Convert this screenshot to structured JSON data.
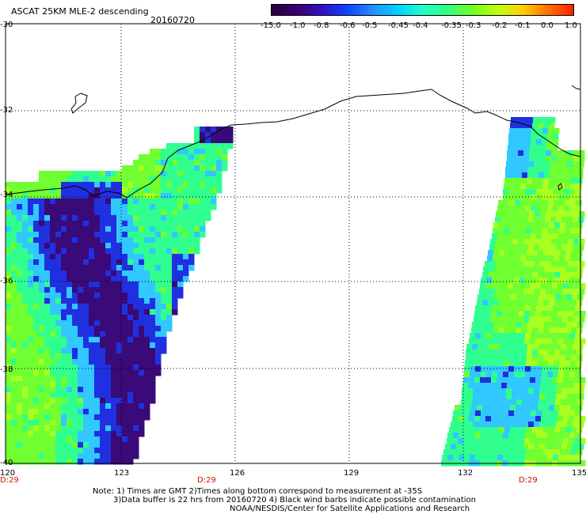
{
  "header": {
    "title": "ASCAT 25KM MLE-2 descending",
    "date": "20160720"
  },
  "colorbar": {
    "labels": [
      "-15.0",
      "-1.0",
      "-0.8",
      "-0.6",
      "-0.5",
      "-0.45",
      "-0.4",
      "-0.35",
      "-0.3",
      "-0.2",
      "-0.1",
      "0.0",
      "1.0"
    ],
    "colors": [
      "#2a003a",
      "#3a0070",
      "#3010c0",
      "#1040ff",
      "#2090ff",
      "#00d0ff",
      "#20ffc8",
      "#30ff80",
      "#70ff20",
      "#c0ff10",
      "#ffd000",
      "#ff7000",
      "#ff2000"
    ]
  },
  "map": {
    "lat_labels": [
      "-30",
      "-32",
      "-34",
      "-36",
      "-38",
      "-40"
    ],
    "lon_labels": [
      "120",
      "123",
      "126",
      "129",
      "132",
      "135"
    ],
    "time_labels": [
      "D:29",
      "D:29",
      "D:29"
    ],
    "colors": {
      "land_line": "#000000",
      "grid": "#000000",
      "deep_purple": "#3a0a78",
      "blue": "#2030e0",
      "cyan": "#30c8ff",
      "green_cyan": "#30ff90",
      "green": "#70ff30",
      "lime": "#a8ff20"
    }
  },
  "notes": {
    "line1": "Note: 1) Times are GMT 2)Times along bottom correspond to measurement at -35S",
    "line2": "3)Data buffer is 22 hrs from 20160720 4) Black wind barbs indicate possible contamination",
    "line3": "NOAA/NESDIS/Center for Satellite Applications and Research"
  }
}
